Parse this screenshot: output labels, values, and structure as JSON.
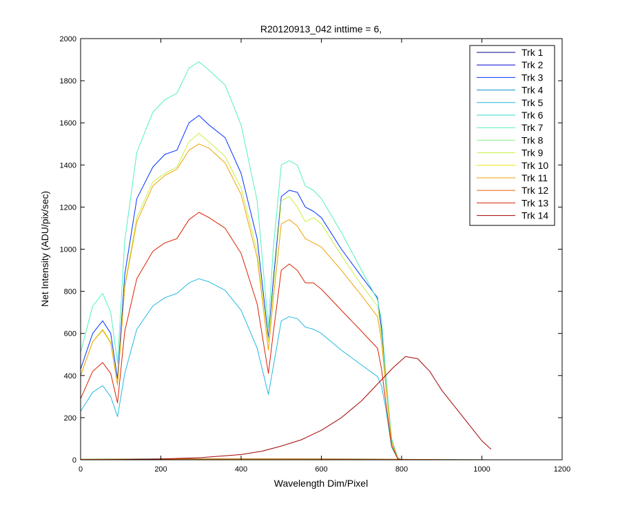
{
  "chart_data": {
    "type": "line",
    "title": "R20120913_042 inttime = 6,",
    "xlabel": "Wavelength Dim/Pixel",
    "ylabel": "Net Intensity (ADU/pix/sec)",
    "xlim": [
      0,
      1200
    ],
    "ylim": [
      0,
      2000
    ],
    "x_ticks": [
      0,
      200,
      400,
      600,
      800,
      1000,
      1200
    ],
    "y_ticks": [
      0,
      200,
      400,
      600,
      800,
      1000,
      1200,
      1400,
      1600,
      1800,
      2000
    ],
    "grid": false,
    "legend_position": "top-right",
    "series": [
      {
        "name": "Trk 1",
        "color": "#00008f",
        "x": [
          0,
          1023
        ],
        "y": [
          0,
          0
        ]
      },
      {
        "name": "Trk 2",
        "color": "#0000d0",
        "x": [
          0,
          100,
          300,
          500,
          700,
          800,
          1023
        ],
        "y": [
          1,
          2,
          3,
          3,
          2,
          1,
          0
        ]
      },
      {
        "name": "Trk 3",
        "color": "#0030ff",
        "x": [
          0,
          30,
          55,
          75,
          92,
          110,
          140,
          180,
          210,
          240,
          270,
          295,
          320,
          360,
          400,
          440,
          468,
          480,
          500,
          520,
          540,
          560,
          580,
          600,
          650,
          700,
          740,
          750,
          760,
          775,
          790,
          800,
          850,
          1023
        ],
        "y": [
          430,
          600,
          660,
          600,
          385,
          880,
          1240,
          1390,
          1450,
          1470,
          1600,
          1635,
          1590,
          1530,
          1360,
          1050,
          580,
          850,
          1250,
          1280,
          1270,
          1200,
          1180,
          1150,
          1000,
          870,
          770,
          620,
          400,
          100,
          10,
          0,
          0,
          0
        ]
      },
      {
        "name": "Trk 4",
        "color": "#0090d0",
        "x": [
          0,
          100,
          300,
          500,
          700,
          800,
          1023
        ],
        "y": [
          2,
          3,
          4,
          4,
          3,
          1,
          0
        ]
      },
      {
        "name": "Trk 5",
        "color": "#20b8e0",
        "x": [
          0,
          30,
          55,
          75,
          92,
          110,
          140,
          180,
          210,
          240,
          270,
          295,
          320,
          360,
          400,
          440,
          468,
          480,
          500,
          520,
          540,
          560,
          580,
          600,
          650,
          700,
          740,
          750,
          760,
          775,
          790,
          800,
          850,
          1023
        ],
        "y": [
          230,
          320,
          352,
          300,
          205,
          410,
          620,
          730,
          770,
          790,
          840,
          860,
          845,
          805,
          710,
          530,
          310,
          440,
          660,
          680,
          670,
          630,
          620,
          600,
          520,
          450,
          395,
          350,
          250,
          60,
          5,
          0,
          0,
          0
        ]
      },
      {
        "name": "Trk 6",
        "color": "#30d8d0",
        "x": [
          0,
          100,
          300,
          500,
          700,
          800,
          1023
        ],
        "y": [
          3,
          4,
          5,
          5,
          4,
          2,
          0
        ]
      },
      {
        "name": "Trk 7",
        "color": "#50f0c0",
        "x": [
          0,
          30,
          55,
          75,
          92,
          110,
          140,
          180,
          210,
          240,
          270,
          295,
          320,
          360,
          400,
          440,
          468,
          480,
          500,
          520,
          540,
          560,
          580,
          600,
          650,
          700,
          740,
          750,
          760,
          775,
          790,
          800,
          850,
          1023
        ],
        "y": [
          510,
          730,
          790,
          700,
          460,
          1040,
          1460,
          1650,
          1710,
          1740,
          1860,
          1890,
          1850,
          1780,
          1590,
          1230,
          630,
          1000,
          1400,
          1420,
          1400,
          1300,
          1280,
          1240,
          1080,
          900,
          760,
          660,
          420,
          100,
          10,
          0,
          0,
          0
        ]
      },
      {
        "name": "Trk 8",
        "color": "#80f080",
        "x": [
          0,
          100,
          300,
          500,
          700,
          800,
          1023
        ],
        "y": [
          2,
          3,
          3,
          3,
          2,
          1,
          0
        ]
      },
      {
        "name": "Trk 9",
        "color": "#c8f040",
        "x": [
          0,
          30,
          55,
          75,
          92,
          110,
          140,
          180,
          210,
          240,
          270,
          295,
          320,
          360,
          400,
          440,
          468,
          480,
          500,
          520,
          540,
          560,
          580,
          600,
          650,
          700,
          740,
          750,
          760,
          775,
          790,
          800,
          850,
          1023
        ],
        "y": [
          400,
          560,
          620,
          560,
          360,
          830,
          1150,
          1320,
          1360,
          1390,
          1510,
          1550,
          1510,
          1440,
          1290,
          990,
          560,
          810,
          1230,
          1250,
          1200,
          1130,
          1150,
          1120,
          970,
          830,
          730,
          590,
          380,
          90,
          8,
          0,
          0,
          0
        ]
      },
      {
        "name": "Trk 10",
        "color": "#f0e000",
        "x": [
          0,
          100,
          300,
          500,
          700,
          800,
          1023
        ],
        "y": [
          2,
          2,
          3,
          3,
          2,
          1,
          0
        ]
      },
      {
        "name": "Trk 11",
        "color": "#f0a000",
        "x": [
          0,
          30,
          55,
          75,
          92,
          110,
          140,
          180,
          210,
          240,
          270,
          295,
          320,
          360,
          400,
          440,
          468,
          480,
          500,
          520,
          540,
          560,
          580,
          600,
          650,
          700,
          740,
          750,
          760,
          775,
          790,
          800,
          850,
          1023
        ],
        "y": [
          400,
          560,
          615,
          555,
          355,
          820,
          1130,
          1300,
          1350,
          1380,
          1470,
          1500,
          1480,
          1410,
          1260,
          960,
          520,
          760,
          1120,
          1140,
          1110,
          1050,
          1030,
          1010,
          900,
          780,
          680,
          560,
          360,
          85,
          8,
          0,
          0,
          0
        ]
      },
      {
        "name": "Trk 12",
        "color": "#f06000",
        "x": [
          0,
          100,
          300,
          500,
          700,
          800,
          900,
          1023
        ],
        "y": [
          2,
          3,
          4,
          4,
          3,
          2,
          1,
          0
        ]
      },
      {
        "name": "Trk 13",
        "color": "#d82000",
        "x": [
          0,
          30,
          55,
          75,
          92,
          110,
          140,
          180,
          210,
          240,
          270,
          295,
          320,
          360,
          400,
          440,
          468,
          480,
          500,
          520,
          540,
          560,
          580,
          600,
          650,
          700,
          740,
          750,
          760,
          775,
          790,
          800,
          850,
          1023
        ],
        "y": [
          290,
          420,
          462,
          410,
          270,
          610,
          860,
          990,
          1030,
          1050,
          1140,
          1175,
          1150,
          1100,
          980,
          740,
          410,
          600,
          900,
          930,
          900,
          840,
          840,
          810,
          710,
          610,
          530,
          430,
          280,
          70,
          5,
          0,
          0,
          0
        ]
      },
      {
        "name": "Trk 14",
        "color": "#a00000",
        "x": [
          0,
          100,
          200,
          300,
          400,
          450,
          500,
          550,
          600,
          650,
          700,
          750,
          780,
          810,
          840,
          870,
          900,
          950,
          1000,
          1023
        ],
        "y": [
          0,
          1,
          4,
          10,
          25,
          40,
          65,
          95,
          140,
          200,
          280,
          380,
          440,
          490,
          480,
          420,
          330,
          210,
          90,
          50
        ]
      }
    ]
  }
}
